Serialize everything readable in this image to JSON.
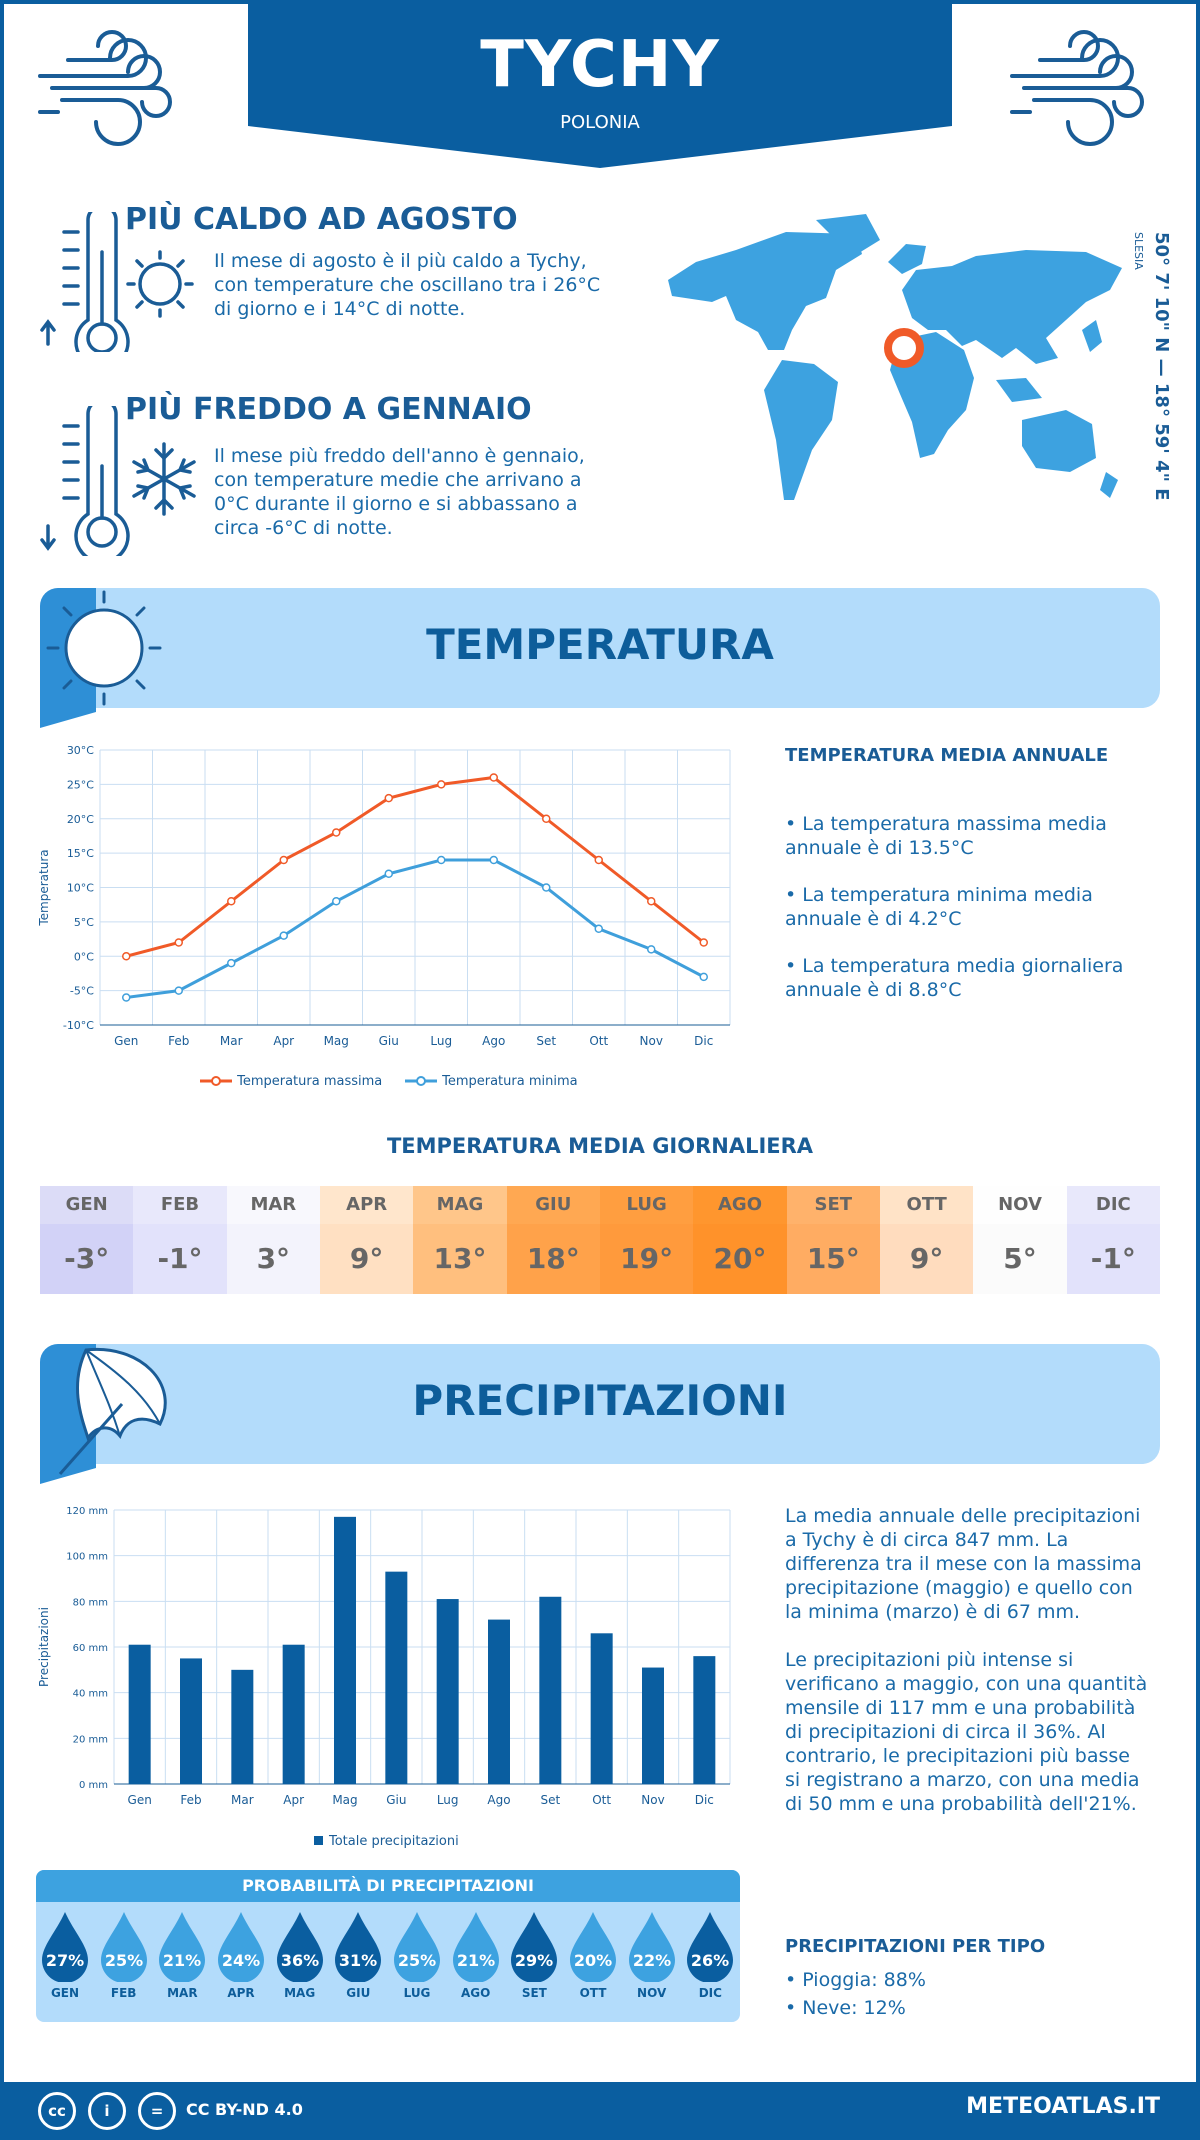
{
  "header": {
    "city": "TYCHY",
    "country": "POLONIA"
  },
  "hottest": {
    "title": "PIÙ CALDO AD AGOSTO",
    "text": "Il mese di agosto è il più caldo a Tychy, con temperature che oscillano tra i 26°C di giorno e i 14°C di notte."
  },
  "coldest": {
    "title": "PIÙ FREDDO A GENNAIO",
    "text": "Il mese più freddo dell'anno è gennaio, con temperature medie che arrivano a 0°C durante il giorno e si abbassano a circa -6°C di notte."
  },
  "location": {
    "coords": "50° 7' 10\" N — 18° 59' 4\" E",
    "region": "SLESIA"
  },
  "temperature": {
    "band_title": "TEMPERATURA",
    "annual_title": "TEMPERATURA MEDIA ANNUALE",
    "bullets": [
      "• La temperatura massima media annuale è di 13.5°C",
      "• La temperatura minima media annuale è di 4.2°C",
      "• La temperatura media giornaliera annuale è di 8.8°C"
    ],
    "daily_title": "TEMPERATURA MEDIA GIORNALIERA",
    "daily": [
      {
        "m": "GEN",
        "v": "-3°",
        "bg": "#dcdcf7",
        "bg2": "#d2d2f7"
      },
      {
        "m": "FEB",
        "v": "-1°",
        "bg": "#e8e8fb",
        "bg2": "#e2e2fb"
      },
      {
        "m": "MAR",
        "v": "3°",
        "bg": "#f8f8fd",
        "bg2": "#f3f3fc"
      },
      {
        "m": "APR",
        "v": "9°",
        "bg": "#ffe6cc",
        "bg2": "#ffe0c2"
      },
      {
        "m": "MAG",
        "v": "13°",
        "bg": "#ffc68a",
        "bg2": "#ffbf7e"
      },
      {
        "m": "GIU",
        "v": "18°",
        "bg": "#ffa852",
        "bg2": "#ffa24a"
      },
      {
        "m": "LUG",
        "v": "19°",
        "bg": "#ff9e40",
        "bg2": "#ff9a3c"
      },
      {
        "m": "AGO",
        "v": "20°",
        "bg": "#ff962e",
        "bg2": "#ff922a"
      },
      {
        "m": "SET",
        "v": "15°",
        "bg": "#ffb26b",
        "bg2": "#ffac62"
      },
      {
        "m": "OTT",
        "v": "9°",
        "bg": "#ffe3c7",
        "bg2": "#ffdcbe"
      },
      {
        "m": "NOV",
        "v": "5°",
        "bg": "#fefefe",
        "bg2": "#fbfbfb"
      },
      {
        "m": "DIC",
        "v": "-1°",
        "bg": "#e8e8fb",
        "bg2": "#e2e2fb"
      }
    ]
  },
  "chart_data": [
    {
      "type": "line",
      "ylabel": "Temperatura",
      "ylim": [
        -10,
        30
      ],
      "yticks": [
        "30°C",
        "25°C",
        "20°C",
        "15°C",
        "10°C",
        "5°C",
        "0°C",
        "-5°C",
        "-10°C"
      ],
      "categories": [
        "Gen",
        "Feb",
        "Mar",
        "Apr",
        "Mag",
        "Giu",
        "Lug",
        "Ago",
        "Set",
        "Ott",
        "Nov",
        "Dic"
      ],
      "series": [
        {
          "name": "Temperatura massima",
          "color": "#f05a28",
          "values": [
            0,
            2,
            8,
            14,
            18,
            23,
            25,
            26,
            20,
            14,
            8,
            2
          ]
        },
        {
          "name": "Temperatura minima",
          "color": "#3f9fdb",
          "values": [
            -6,
            -5,
            -1,
            3,
            8,
            12,
            14,
            14,
            10,
            4,
            1,
            -3
          ]
        }
      ]
    },
    {
      "type": "bar",
      "ylabel": "Precipitazioni",
      "ylim": [
        0,
        120
      ],
      "yticks": [
        "120 mm",
        "100 mm",
        "80 mm",
        "60 mm",
        "40 mm",
        "20 mm",
        "0 mm"
      ],
      "categories": [
        "Gen",
        "Feb",
        "Mar",
        "Apr",
        "Mag",
        "Giu",
        "Lug",
        "Ago",
        "Set",
        "Ott",
        "Nov",
        "Dic"
      ],
      "series": [
        {
          "name": "Totale precipitazioni",
          "color": "#0a5ea0",
          "values": [
            61,
            55,
            50,
            61,
            117,
            93,
            81,
            72,
            82,
            66,
            51,
            56
          ]
        }
      ]
    }
  ],
  "precip": {
    "band_title": "PRECIPITAZIONI",
    "text1": "La media annuale delle precipitazioni a Tychy è di circa 847 mm. La differenza tra il mese con la massima precipitazione (maggio) e quello con la minima (marzo) è di 67 mm.",
    "text2": "Le precipitazioni più intense si verificano a maggio, con una quantità mensile di 117 mm e una probabilità di precipitazioni di circa il 36%. Al contrario, le precipitazioni più basse si registrano a marzo, con una media di 50 mm e una probabilità dell'21%.",
    "prob_title": "PROBABILITÀ DI PRECIPITAZIONI",
    "prob": [
      {
        "m": "GEN",
        "v": "27%",
        "c": "#0a5ea0"
      },
      {
        "m": "FEB",
        "v": "25%",
        "c": "#3da2e0"
      },
      {
        "m": "MAR",
        "v": "21%",
        "c": "#3da2e0"
      },
      {
        "m": "APR",
        "v": "24%",
        "c": "#3da2e0"
      },
      {
        "m": "MAG",
        "v": "36%",
        "c": "#0a5ea0"
      },
      {
        "m": "GIU",
        "v": "31%",
        "c": "#0a5ea0"
      },
      {
        "m": "LUG",
        "v": "25%",
        "c": "#3da2e0"
      },
      {
        "m": "AGO",
        "v": "21%",
        "c": "#3da2e0"
      },
      {
        "m": "SET",
        "v": "29%",
        "c": "#0a5ea0"
      },
      {
        "m": "OTT",
        "v": "20%",
        "c": "#3da2e0"
      },
      {
        "m": "NOV",
        "v": "22%",
        "c": "#3da2e0"
      },
      {
        "m": "DIC",
        "v": "26%",
        "c": "#0a5ea0"
      }
    ],
    "type_title": "PRECIPITAZIONI PER TIPO",
    "types": [
      "• Pioggia: 88%",
      "• Neve: 12%"
    ]
  },
  "footer": {
    "license": "CC BY-ND 4.0",
    "site": "METEOATLAS.IT",
    "icons": [
      "cc",
      "i",
      "="
    ]
  }
}
